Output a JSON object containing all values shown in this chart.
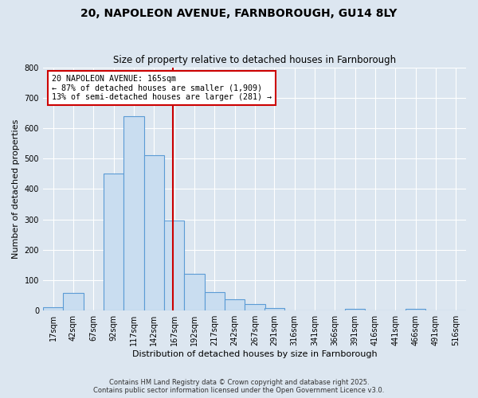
{
  "title1": "20, NAPOLEON AVENUE, FARNBOROUGH, GU14 8LY",
  "title2": "Size of property relative to detached houses in Farnborough",
  "xlabel": "Distribution of detached houses by size in Farnborough",
  "ylabel": "Number of detached properties",
  "bar_labels": [
    "17sqm",
    "42sqm",
    "67sqm",
    "92sqm",
    "117sqm",
    "142sqm",
    "167sqm",
    "192sqm",
    "217sqm",
    "242sqm",
    "267sqm",
    "291sqm",
    "316sqm",
    "341sqm",
    "366sqm",
    "391sqm",
    "416sqm",
    "441sqm",
    "466sqm",
    "491sqm",
    "516sqm"
  ],
  "bar_centers": [
    17,
    42,
    67,
    92,
    117,
    142,
    167,
    192,
    217,
    242,
    267,
    291,
    316,
    341,
    366,
    391,
    416,
    441,
    466,
    491,
    516
  ],
  "bar_heights": [
    10,
    57,
    0,
    450,
    640,
    510,
    295,
    120,
    62,
    38,
    22,
    8,
    0,
    0,
    0,
    7,
    0,
    0,
    5,
    0,
    0
  ],
  "bin_width": 25,
  "bar_color_fill": "#c9ddf0",
  "bar_color_edge": "#5b9bd5",
  "vline_x": 165,
  "vline_color": "#cc0000",
  "annotation_title": "20 NAPOLEON AVENUE: 165sqm",
  "annotation_line1": "← 87% of detached houses are smaller (1,909)",
  "annotation_line2": "13% of semi-detached houses are larger (281) →",
  "annotation_box_color": "#cc0000",
  "ylim": [
    0,
    800
  ],
  "yticks": [
    0,
    100,
    200,
    300,
    400,
    500,
    600,
    700,
    800
  ],
  "xlim": [
    4.5,
    528.5
  ],
  "background_color": "#dce6f0",
  "plot_bg_color": "#dce6f0",
  "title_fontsize": 10,
  "subtitle_fontsize": 8.5,
  "ylabel_fontsize": 8,
  "xlabel_fontsize": 8,
  "tick_fontsize": 7,
  "footer1": "Contains HM Land Registry data © Crown copyright and database right 2025.",
  "footer2": "Contains public sector information licensed under the Open Government Licence v3.0."
}
